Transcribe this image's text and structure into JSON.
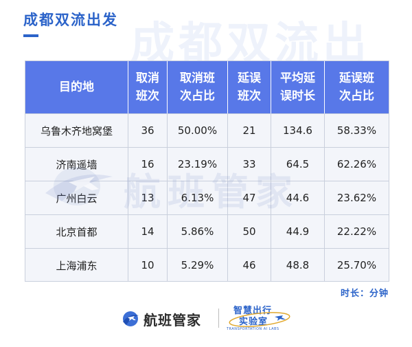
{
  "header": {
    "title": "成都双流出发",
    "watermark": "成都双流出",
    "accent_color": "#2b63c9"
  },
  "table": {
    "header_color": "#5878e8",
    "columns": [
      {
        "line1": "目的地",
        "line2": ""
      },
      {
        "line1": "取消",
        "line2": "班次"
      },
      {
        "line1": "取消班",
        "line2": "次占比"
      },
      {
        "line1": "延误",
        "line2": "班次"
      },
      {
        "line1": "平均延",
        "line2": "误时长"
      },
      {
        "line1": "延误班",
        "line2": "次占比"
      }
    ],
    "rows": [
      [
        "乌鲁木齐地窝堡",
        "36",
        "50.00%",
        "21",
        "134.6",
        "58.33%"
      ],
      [
        "济南遥墙",
        "16",
        "23.19%",
        "33",
        "64.5",
        "62.26%"
      ],
      [
        "广州白云",
        "13",
        "6.13%",
        "47",
        "44.6",
        "23.62%"
      ],
      [
        "北京首都",
        "14",
        "5.86%",
        "50",
        "44.9",
        "22.22%"
      ],
      [
        "上海浦东",
        "10",
        "5.29%",
        "46",
        "48.8",
        "25.70%"
      ]
    ]
  },
  "watermark_mid": {
    "text": "航班管家",
    "icon": "airplane-globe-icon"
  },
  "footer": {
    "unit_note": "时长：分钟",
    "brand_name": "航班管家",
    "brand_icon": "airplane-globe-icon",
    "lab_line1": "智慧出行",
    "lab_line2": "实验室",
    "lab_line3": "TRANSPORTATION AI LABS",
    "lab_icon": "airplane-orbit-icon"
  }
}
